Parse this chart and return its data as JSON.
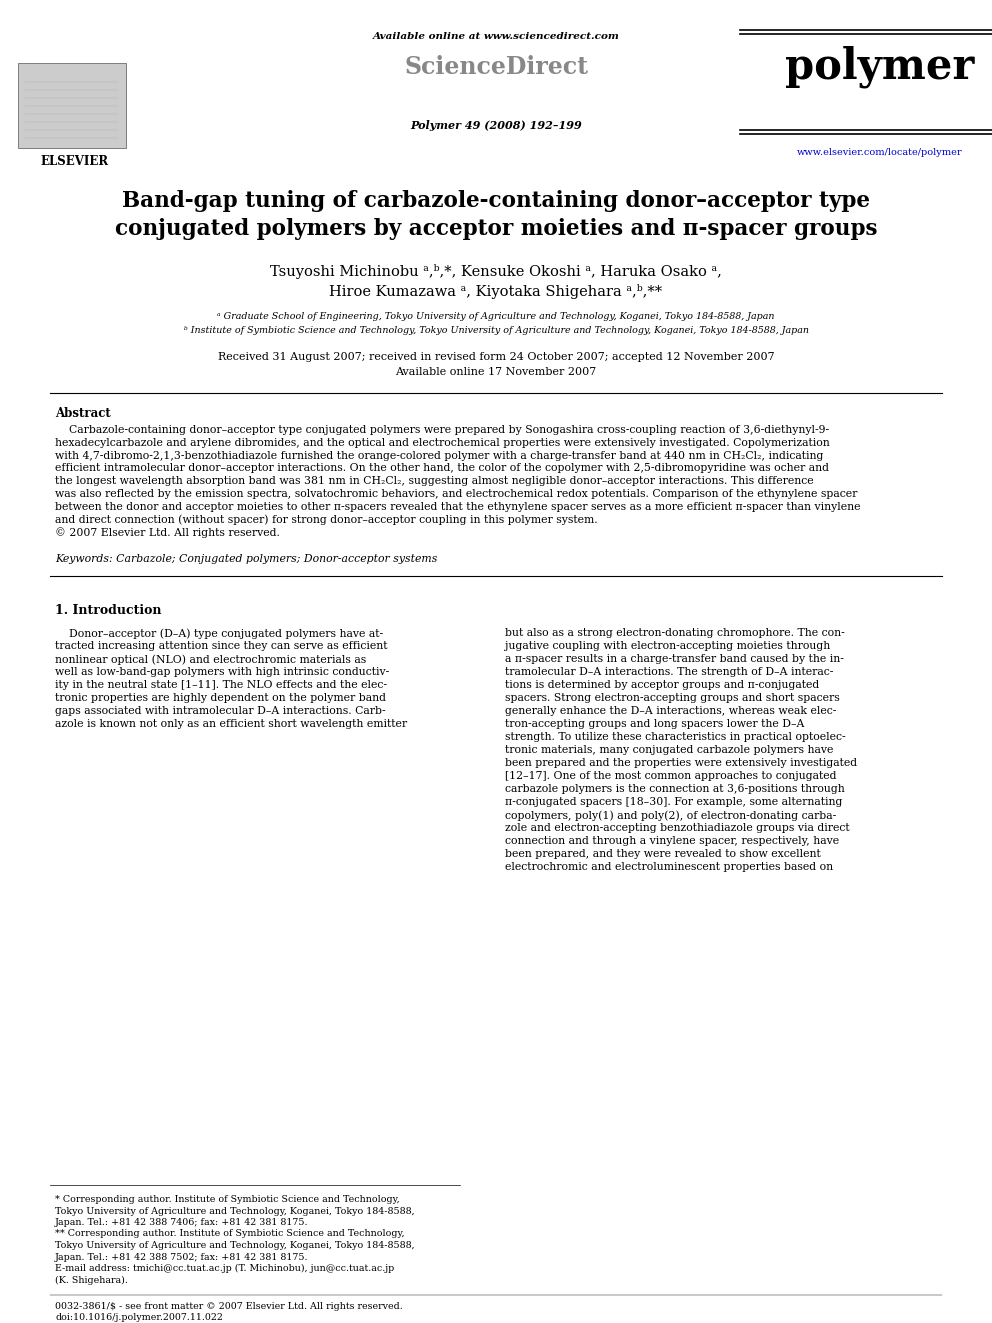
{
  "bg_color": "#ffffff",
  "title_line1": "Band-gap tuning of carbazole-containing donor–acceptor type",
  "title_line2": "conjugated polymers by acceptor moieties and π-spacer groups",
  "authors_line1": "Tsuyoshi Michinobu ᵃ,ᵇ,*, Kensuke Okoshi ᵃ, Haruka Osako ᵃ,",
  "authors_line2": "Hiroe Kumazawa ᵃ, Kiyotaka Shigehara ᵃ,ᵇ,**",
  "affil_a": "ᵃ Graduate School of Engineering, Tokyo University of Agriculture and Technology, Koganei, Tokyo 184-8588, Japan",
  "affil_b": "ᵇ Institute of Symbiotic Science and Technology, Tokyo University of Agriculture and Technology, Koganei, Tokyo 184-8588, Japan",
  "dates": "Received 31 August 2007; received in revised form 24 October 2007; accepted 12 November 2007",
  "available": "Available online 17 November 2007",
  "journal_info": "Polymer 49 (2008) 192–199",
  "available_online": "Available online at www.sciencedirect.com",
  "url": "www.elsevier.com/locate/polymer",
  "abstract_title": "Abstract",
  "keywords_text": "Keywords: Carbazole; Conjugated polymers; Donor-acceptor systems",
  "section1_title": "1. Introduction",
  "bottom_line1": "0032-3861/$ - see front matter © 2007 Elsevier Ltd. All rights reserved.",
  "bottom_line2": "doi:10.1016/j.polymer.2007.11.022",
  "abstract_lines": [
    "    Carbazole-containing donor–acceptor type conjugated polymers were prepared by Sonogashira cross-coupling reaction of 3,6-diethynyl-9-",
    "hexadecylcarbazole and arylene dibromides, and the optical and electrochemical properties were extensively investigated. Copolymerization",
    "with 4,7-dibromo-2,1,3-benzothiadiazole furnished the orange-colored polymer with a charge-transfer band at 440 nm in CH₂Cl₂, indicating",
    "efficient intramolecular donor–acceptor interactions. On the other hand, the color of the copolymer with 2,5-dibromopyridine was ocher and",
    "the longest wavelength absorption band was 381 nm in CH₂Cl₂, suggesting almost negligible donor–acceptor interactions. This difference",
    "was also reflected by the emission spectra, solvatochromic behaviors, and electrochemical redox potentials. Comparison of the ethynylene spacer",
    "between the donor and acceptor moieties to other π-spacers revealed that the ethynylene spacer serves as a more efficient π-spacer than vinylene",
    "and direct connection (without spacer) for strong donor–acceptor coupling in this polymer system.",
    "© 2007 Elsevier Ltd. All rights reserved."
  ],
  "intro_left_lines": [
    "    Donor–acceptor (D–A) type conjugated polymers have at-",
    "tracted increasing attention since they can serve as efficient",
    "nonlinear optical (NLO) and electrochromic materials as",
    "well as low-band-gap polymers with high intrinsic conductiv-",
    "ity in the neutral state [1–11]. The NLO effects and the elec-",
    "tronic properties are highly dependent on the polymer band",
    "gaps associated with intramolecular D–A interactions. Carb-",
    "azole is known not only as an efficient short wavelength emitter"
  ],
  "intro_right_lines": [
    "but also as a strong electron-donating chromophore. The con-",
    "jugative coupling with electron-accepting moieties through",
    "a π-spacer results in a charge-transfer band caused by the in-",
    "tramolecular D–A interactions. The strength of D–A interac-",
    "tions is determined by acceptor groups and π-conjugated",
    "spacers. Strong electron-accepting groups and short spacers",
    "generally enhance the D–A interactions, whereas weak elec-",
    "tron-accepting groups and long spacers lower the D–A",
    "strength. To utilize these characteristics in practical optoelec-",
    "tronic materials, many conjugated carbazole polymers have",
    "been prepared and the properties were extensively investigated",
    "[12–17]. One of the most common approaches to conjugated",
    "carbazole polymers is the connection at 3,6-positions through",
    "π-conjugated spacers [18–30]. For example, some alternating",
    "copolymers, poly(1) and poly(2), of electron-donating carba-",
    "zole and electron-accepting benzothiadiazole groups via direct",
    "connection and through a vinylene spacer, respectively, have",
    "been prepared, and they were revealed to show excellent",
    "electrochromic and electroluminescent properties based on"
  ],
  "footnote_lines": [
    "* Corresponding author. Institute of Symbiotic Science and Technology,",
    "Tokyo University of Agriculture and Technology, Koganei, Tokyo 184-8588,",
    "Japan. Tel.: +81 42 388 7406; fax: +81 42 381 8175.",
    "** Corresponding author. Institute of Symbiotic Science and Technology,",
    "Tokyo University of Agriculture and Technology, Koganei, Tokyo 184-8588,",
    "Japan. Tel.: +81 42 388 7502; fax: +81 42 381 8175.",
    "E-mail address: tmichi@cc.tuat.ac.jp (T. Michinobu), jun@cc.tuat.ac.jp",
    "(K. Shigehara)."
  ]
}
